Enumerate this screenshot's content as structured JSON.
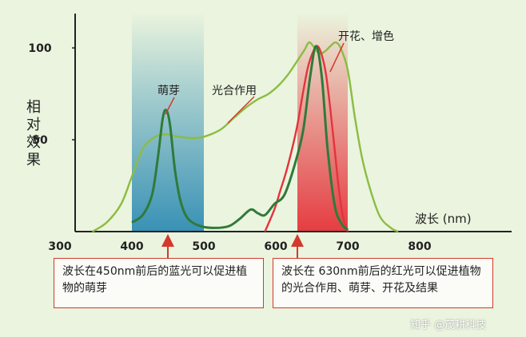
{
  "chart_data": {
    "type": "line",
    "ylabel": "相对效果",
    "xlabel": "波长 (nm)",
    "x_ticks": [
      300,
      400,
      500,
      600,
      700,
      800
    ],
    "y_ticks": [
      50,
      100
    ],
    "xlim": [
      300,
      800
    ],
    "ylim": [
      0,
      110
    ],
    "bands": [
      {
        "name": "blue",
        "from": 400,
        "to": 500,
        "color": "#2f8cb3"
      },
      {
        "name": "red",
        "from": 630,
        "to": 700,
        "color": "#e5333a"
      }
    ],
    "series": [
      {
        "name": "萌芽",
        "color": "#2f7a3a",
        "points": [
          [
            400,
            5
          ],
          [
            415,
            9
          ],
          [
            428,
            20
          ],
          [
            436,
            40
          ],
          [
            443,
            62
          ],
          [
            448,
            66
          ],
          [
            453,
            58
          ],
          [
            460,
            33
          ],
          [
            468,
            16
          ],
          [
            478,
            7
          ],
          [
            495,
            3
          ],
          [
            515,
            2
          ],
          [
            535,
            3
          ],
          [
            550,
            7
          ],
          [
            565,
            12
          ],
          [
            575,
            10
          ],
          [
            585,
            9
          ],
          [
            598,
            15
          ],
          [
            612,
            20
          ],
          [
            626,
            36
          ],
          [
            638,
            55
          ],
          [
            648,
            85
          ],
          [
            656,
            101
          ],
          [
            664,
            84
          ],
          [
            672,
            45
          ],
          [
            682,
            14
          ],
          [
            692,
            4
          ],
          [
            700,
            1
          ]
        ]
      },
      {
        "name": "光合作用",
        "color": "#8cbc42",
        "points": [
          [
            345,
            0
          ],
          [
            365,
            5
          ],
          [
            385,
            15
          ],
          [
            400,
            30
          ],
          [
            415,
            45
          ],
          [
            430,
            51
          ],
          [
            445,
            53
          ],
          [
            460,
            52
          ],
          [
            478,
            51
          ],
          [
            493,
            51
          ],
          [
            510,
            53
          ],
          [
            525,
            56
          ],
          [
            542,
            62
          ],
          [
            560,
            68
          ],
          [
            575,
            72
          ],
          [
            590,
            75
          ],
          [
            605,
            80
          ],
          [
            618,
            86
          ],
          [
            630,
            93
          ],
          [
            640,
            99
          ],
          [
            646,
            103
          ],
          [
            652,
            101
          ],
          [
            660,
            97
          ],
          [
            668,
            98
          ],
          [
            676,
            101
          ],
          [
            683,
            103
          ],
          [
            690,
            100
          ],
          [
            700,
            88
          ],
          [
            710,
            62
          ],
          [
            720,
            40
          ],
          [
            732,
            22
          ],
          [
            745,
            8
          ],
          [
            760,
            2
          ],
          [
            770,
            0
          ]
        ]
      },
      {
        "name": "开花、增色",
        "color": "#e3343a",
        "points": [
          [
            585,
            0
          ],
          [
            598,
            12
          ],
          [
            606,
            22
          ],
          [
            614,
            32
          ],
          [
            622,
            44
          ],
          [
            630,
            58
          ],
          [
            638,
            76
          ],
          [
            645,
            90
          ],
          [
            652,
            98
          ],
          [
            658,
            101
          ],
          [
            664,
            96
          ],
          [
            670,
            85
          ],
          [
            676,
            66
          ],
          [
            682,
            44
          ],
          [
            688,
            22
          ],
          [
            694,
            7
          ],
          [
            700,
            0
          ]
        ]
      }
    ],
    "annotations": [
      {
        "text": "萌芽",
        "points_to": "萌芽"
      },
      {
        "text": "光合作用",
        "points_to": "光合作用"
      },
      {
        "text": "开花、增色",
        "points_to": "开花、增色"
      }
    ],
    "notes": [
      {
        "text": "波长在450nm前后的蓝光可以促进植物的萌芽",
        "arrow_at": 450
      },
      {
        "text": "波长在 630nm前后的红光可以促进植物的光合作用、萌芽、开花及结果",
        "arrow_at": 630
      }
    ]
  },
  "watermark": "知乎 @茂耕科技",
  "colors": {
    "background": "#eaf4de",
    "axis": "#222222",
    "arrow": "#d33a2c"
  }
}
